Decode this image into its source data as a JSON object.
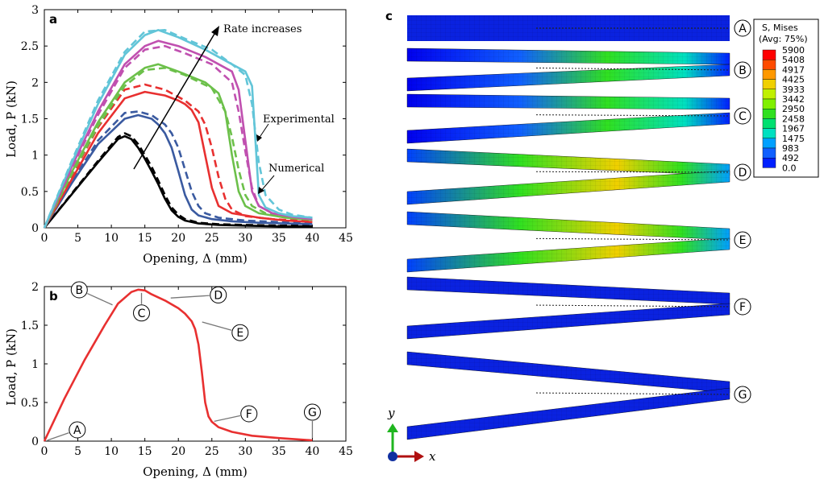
{
  "panels": {
    "a": "a",
    "b": "b",
    "c": "c"
  },
  "chart_data": [
    {
      "type": "line",
      "panel": "a",
      "xlabel": "Opening, Δ (mm)",
      "ylabel": "Load, P (kN)",
      "xlim": [
        0,
        45
      ],
      "ylim": [
        0,
        3
      ],
      "xticks": [
        "0",
        "5",
        "10",
        "15",
        "20",
        "25",
        "30",
        "35",
        "40",
        "45"
      ],
      "yticks": [
        "0",
        "0.5",
        "1",
        "1.5",
        "2",
        "2.5",
        "3"
      ],
      "annotations": {
        "arrow": "Rate increases",
        "experimental": "Experimental",
        "numerical": "Numerical"
      },
      "series": [
        {
          "color": "#000000",
          "style": "solid",
          "x": [
            0,
            4,
            8,
            11,
            12,
            13,
            14,
            15,
            16,
            17,
            18,
            19,
            20,
            21,
            23,
            26,
            30,
            35,
            40
          ],
          "y": [
            0,
            0.45,
            0.9,
            1.22,
            1.26,
            1.22,
            1.1,
            0.95,
            0.78,
            0.6,
            0.4,
            0.24,
            0.15,
            0.1,
            0.06,
            0.04,
            0.03,
            0.02,
            0.02
          ]
        },
        {
          "color": "#000000",
          "style": "dashed",
          "x": [
            0,
            4,
            8,
            11,
            12,
            13,
            14,
            15,
            16,
            17,
            18,
            19,
            20,
            21,
            23,
            26,
            30,
            35,
            40
          ],
          "y": [
            0,
            0.46,
            0.92,
            1.25,
            1.3,
            1.26,
            1.15,
            1.0,
            0.84,
            0.65,
            0.45,
            0.28,
            0.18,
            0.12,
            0.07,
            0.05,
            0.04,
            0.03,
            0.03
          ]
        },
        {
          "color": "#3a5aa0",
          "style": "solid",
          "x": [
            0,
            4,
            8,
            12,
            14,
            16,
            17,
            18,
            19,
            20,
            21,
            22,
            23,
            25,
            28,
            32,
            36,
            40
          ],
          "y": [
            0,
            0.6,
            1.15,
            1.5,
            1.55,
            1.5,
            1.42,
            1.3,
            1.1,
            0.78,
            0.45,
            0.25,
            0.17,
            0.12,
            0.09,
            0.07,
            0.06,
            0.05
          ]
        },
        {
          "color": "#3a5aa0",
          "style": "dashed",
          "x": [
            0,
            4,
            8,
            12,
            14,
            16,
            18,
            19,
            20,
            21,
            22,
            23,
            24,
            26,
            30,
            35,
            40
          ],
          "y": [
            0,
            0.62,
            1.2,
            1.58,
            1.6,
            1.55,
            1.42,
            1.3,
            1.1,
            0.8,
            0.5,
            0.3,
            0.2,
            0.14,
            0.1,
            0.08,
            0.06
          ]
        },
        {
          "color": "#e83030",
          "style": "solid",
          "x": [
            0,
            4,
            8,
            12,
            15,
            18,
            20,
            21,
            22,
            23,
            24,
            25,
            26,
            28,
            32,
            36,
            40
          ],
          "y": [
            0,
            0.65,
            1.3,
            1.78,
            1.87,
            1.82,
            1.75,
            1.7,
            1.62,
            1.45,
            1.0,
            0.55,
            0.3,
            0.2,
            0.14,
            0.1,
            0.08
          ]
        },
        {
          "color": "#e83030",
          "style": "dashed",
          "x": [
            0,
            4,
            8,
            12,
            15,
            18,
            21,
            23,
            24,
            25,
            26,
            27,
            28,
            30,
            34,
            40
          ],
          "y": [
            0,
            0.7,
            1.38,
            1.9,
            1.97,
            1.9,
            1.75,
            1.6,
            1.42,
            1.1,
            0.7,
            0.4,
            0.25,
            0.16,
            0.12,
            0.09
          ]
        },
        {
          "color": "#6cc04a",
          "style": "solid",
          "x": [
            0,
            4,
            8,
            12,
            15,
            17,
            20,
            24,
            26,
            27,
            28,
            29,
            30,
            32,
            36,
            40
          ],
          "y": [
            0,
            0.75,
            1.45,
            2.0,
            2.2,
            2.25,
            2.15,
            2.0,
            1.85,
            1.6,
            1.0,
            0.5,
            0.3,
            0.2,
            0.14,
            0.11
          ]
        },
        {
          "color": "#6cc04a",
          "style": "dashed",
          "x": [
            0,
            4,
            8,
            12,
            15,
            18,
            21,
            25,
            27,
            28,
            29,
            30,
            31,
            33,
            36,
            40
          ],
          "y": [
            0,
            0.72,
            1.4,
            1.95,
            2.17,
            2.2,
            2.1,
            1.92,
            1.6,
            1.25,
            0.8,
            0.45,
            0.3,
            0.2,
            0.15,
            0.12
          ]
        },
        {
          "color": "#c050b0",
          "style": "solid",
          "x": [
            0,
            4,
            8,
            12,
            15,
            17,
            20,
            24,
            28,
            29,
            30,
            31,
            32,
            34,
            37,
            40
          ],
          "y": [
            0,
            0.82,
            1.6,
            2.25,
            2.5,
            2.57,
            2.5,
            2.35,
            2.15,
            1.9,
            1.2,
            0.5,
            0.3,
            0.2,
            0.15,
            0.12
          ]
        },
        {
          "color": "#c050b0",
          "style": "dashed",
          "x": [
            0,
            4,
            8,
            12,
            15,
            18,
            21,
            25,
            28,
            29,
            30,
            31,
            32,
            34,
            37,
            40
          ],
          "y": [
            0,
            0.8,
            1.55,
            2.2,
            2.45,
            2.5,
            2.4,
            2.25,
            2.0,
            1.6,
            1.05,
            0.55,
            0.3,
            0.2,
            0.15,
            0.12
          ]
        },
        {
          "color": "#62c5d8",
          "style": "solid",
          "x": [
            0,
            4,
            8,
            12,
            15,
            17,
            20,
            24,
            28,
            30,
            31,
            31.5,
            32,
            33,
            35,
            37,
            40
          ],
          "y": [
            0,
            0.87,
            1.7,
            2.38,
            2.65,
            2.72,
            2.62,
            2.45,
            2.25,
            2.15,
            1.95,
            1.2,
            0.45,
            0.28,
            0.2,
            0.16,
            0.14
          ]
        },
        {
          "color": "#62c5d8",
          "style": "dashed",
          "x": [
            0,
            4,
            8,
            12,
            15,
            18,
            21,
            25,
            28,
            30,
            31,
            32,
            33,
            35,
            37,
            40
          ],
          "y": [
            0,
            0.9,
            1.75,
            2.42,
            2.7,
            2.72,
            2.6,
            2.45,
            2.25,
            2.1,
            1.7,
            0.9,
            0.45,
            0.25,
            0.18,
            0.14
          ]
        }
      ]
    },
    {
      "type": "line",
      "panel": "b",
      "xlabel": "Opening, Δ (mm)",
      "ylabel": "Load, P (kN)",
      "xlim": [
        0,
        45
      ],
      "ylim": [
        0,
        2
      ],
      "xticks": [
        "0",
        "5",
        "10",
        "15",
        "20",
        "25",
        "30",
        "35",
        "40",
        "45"
      ],
      "yticks": [
        "0",
        "0.5",
        "1",
        "1.5",
        "2"
      ],
      "series": [
        {
          "color": "#e83030",
          "style": "solid",
          "x": [
            0,
            3,
            6,
            9,
            11,
            13,
            14,
            15,
            16,
            18,
            20,
            21,
            22,
            22.5,
            23,
            23.5,
            24,
            24.5,
            25,
            26,
            28,
            31,
            35,
            40
          ],
          "y": [
            0,
            0.55,
            1.05,
            1.5,
            1.78,
            1.93,
            1.96,
            1.95,
            1.9,
            1.82,
            1.72,
            1.65,
            1.55,
            1.45,
            1.25,
            0.9,
            0.5,
            0.32,
            0.25,
            0.18,
            0.12,
            0.07,
            0.04,
            0.01
          ]
        }
      ],
      "markers": [
        {
          "label": "A",
          "x": 0.1,
          "y": 0.0
        },
        {
          "label": "B",
          "x": 10.5,
          "y": 1.75
        },
        {
          "label": "C",
          "x": 14.5,
          "y": 1.95
        },
        {
          "label": "D",
          "x": 18.5,
          "y": 1.85
        },
        {
          "label": "E",
          "x": 23.2,
          "y": 1.55
        },
        {
          "label": "F",
          "x": 25.0,
          "y": 0.25
        },
        {
          "label": "G",
          "x": 40.0,
          "y": 0.01
        }
      ]
    }
  ],
  "contour": {
    "legend_title_1": "S, Mises",
    "legend_title_2": "(Avg: 75%)",
    "levels": [
      "5900",
      "5408",
      "4917",
      "4425",
      "3933",
      "3442",
      "2950",
      "2458",
      "1967",
      "1475",
      "983",
      "492",
      "0.0"
    ],
    "colors": [
      "#ff0000",
      "#ff4c00",
      "#ff9900",
      "#f0d000",
      "#c0f000",
      "#80f000",
      "#30e020",
      "#00e070",
      "#00e0c0",
      "#00a0ff",
      "#1060ff",
      "#0020ff",
      "#0000ee"
    ],
    "state_labels": [
      "A",
      "B",
      "C",
      "D",
      "E",
      "F",
      "G"
    ],
    "axes": {
      "y": "y",
      "x": "x"
    }
  }
}
